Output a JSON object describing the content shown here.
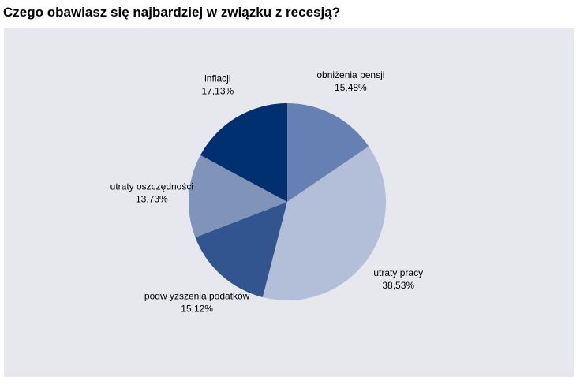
{
  "chart_data": {
    "type": "pie",
    "title": "Czego obawiasz się najbardziej w związku z recesją?",
    "categories": [
      "obniżenia pensji",
      "utraty pracy",
      "podw yższenia podatków",
      "utraty oszczędności",
      "inflacji"
    ],
    "values": [
      15.48,
      38.53,
      15.12,
      13.73,
      17.13
    ],
    "value_labels": [
      "15,48%",
      "38,53%",
      "15,12%",
      "13,73%",
      "17,13%"
    ],
    "colors": [
      "#6680b3",
      "#b3bfd9",
      "#33558f",
      "#8093b8",
      "#003070"
    ]
  }
}
